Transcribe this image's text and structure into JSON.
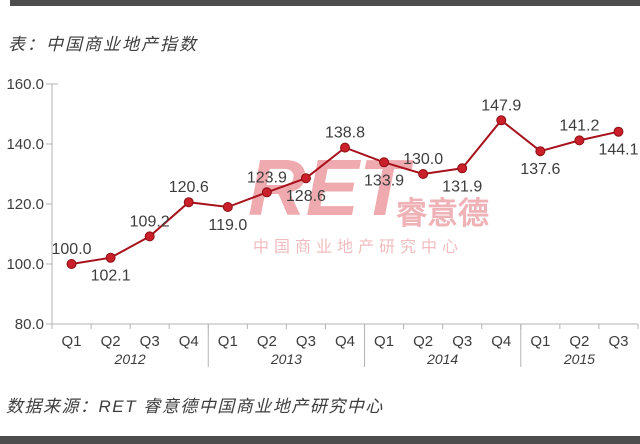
{
  "page": {
    "title": "表：中国商业地产指数",
    "source": "数据来源：RET 睿意德中国商业地产研究中心"
  },
  "watermark": {
    "brand": "RET",
    "brand_cn": "睿意德",
    "subtitle": "中国商业地产研究中心"
  },
  "colors": {
    "line": "#a8121c",
    "marker": "#c9202a",
    "marker_edge": "#8c0f16",
    "axis": "#b3b3b3",
    "text": "#3d3d3d",
    "bar": "#4d4d4d",
    "watermark": "#d3232e"
  },
  "chart_data": {
    "type": "line",
    "title": "表：中国商业地产指数",
    "categories": [
      "Q1",
      "Q2",
      "Q3",
      "Q4",
      "Q1",
      "Q2",
      "Q3",
      "Q4",
      "Q1",
      "Q2",
      "Q3",
      "Q4",
      "Q1",
      "Q2",
      "Q3"
    ],
    "year_groups": [
      {
        "label": "2012",
        "count": 4
      },
      {
        "label": "2013",
        "count": 4
      },
      {
        "label": "2014",
        "count": 4
      },
      {
        "label": "2015",
        "count": 3
      }
    ],
    "series": [
      {
        "name": "中国商业地产指数",
        "values": [
          100.0,
          102.1,
          109.2,
          120.6,
          119.0,
          123.9,
          128.6,
          138.8,
          133.9,
          130.0,
          131.9,
          147.9,
          137.6,
          141.2,
          144.1
        ]
      }
    ],
    "data_labels": [
      "100.0",
      "102.1",
      "109.2",
      "120.6",
      "119.0",
      "123.9",
      "128.6",
      "138.8",
      "133.9",
      "130.0",
      "131.9",
      "147.9",
      "137.6",
      "141.2",
      "144.1"
    ],
    "label_positions": [
      "above",
      "below",
      "above",
      "above",
      "below",
      "above",
      "below",
      "above",
      "below",
      "above",
      "below",
      "above",
      "below",
      "above",
      "below"
    ],
    "ylim": [
      80,
      160
    ],
    "yticks": [
      160.0,
      140.0,
      120.0,
      100.0,
      80.0
    ],
    "ytick_labels": [
      "160.0",
      "140.0",
      "120.0",
      "100.0",
      "80.0"
    ],
    "grid": false,
    "legend": false
  }
}
